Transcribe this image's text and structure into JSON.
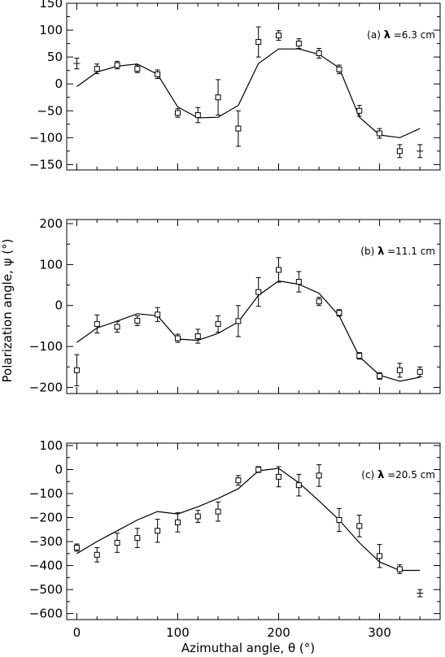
{
  "figure": {
    "xlabel": "Azimuthal angle, θ (°)",
    "ylabel": "Polarization angle, ψ (°)"
  },
  "chart_data": [
    {
      "type": "scatter",
      "panel": "(a)",
      "annotation": {
        "prefix": "(a) ",
        "lambda": "λ",
        "value": " =6.3 cm"
      },
      "xlim": [
        -10,
        360
      ],
      "ylim": [
        -160,
        150
      ],
      "xticks": [
        0,
        100,
        200,
        300
      ],
      "yticks": [
        150,
        100,
        50,
        0,
        -50,
        -100,
        -150
      ],
      "ytick_labels": [
        "150",
        "100",
        "50",
        "0",
        "−50",
        "−100",
        "−150"
      ],
      "observed": {
        "x": [
          0,
          20,
          40,
          60,
          80,
          100,
          120,
          140,
          160,
          180,
          200,
          220,
          240,
          260,
          280,
          300,
          320,
          340
        ],
        "y": [
          38,
          28,
          35,
          28,
          18,
          -54,
          -58,
          -25,
          -83,
          78,
          90,
          75,
          57,
          27,
          -50,
          -92,
          -125,
          -125
        ],
        "err": [
          10,
          9,
          7,
          7,
          8,
          8,
          14,
          33,
          33,
          28,
          9,
          9,
          9,
          8,
          10,
          9,
          12,
          12
        ],
        "marker": [
          "plus",
          "square",
          "square",
          "square",
          "square",
          "square",
          "square",
          "square",
          "square",
          "square",
          "square",
          "square",
          "square",
          "square",
          "square",
          "square",
          "square",
          "plus"
        ]
      },
      "model": {
        "x": [
          0,
          20,
          40,
          60,
          80,
          100,
          120,
          140,
          160,
          180,
          200,
          220,
          240,
          260,
          280,
          300,
          320,
          340
        ],
        "y": [
          -5,
          22,
          33,
          37,
          18,
          -43,
          -63,
          -62,
          -40,
          38,
          65,
          65,
          55,
          30,
          -62,
          -95,
          -100,
          -83
        ]
      }
    },
    {
      "type": "scatter",
      "panel": "(b)",
      "annotation": {
        "prefix": "(b) ",
        "lambda": "λ",
        "value": " =11.1 cm"
      },
      "xlim": [
        -10,
        360
      ],
      "ylim": [
        -215,
        210
      ],
      "xticks": [
        0,
        100,
        200,
        300
      ],
      "yticks": [
        200,
        100,
        0,
        -100,
        -200
      ],
      "ytick_labels": [
        "200",
        "100",
        "0",
        "−100",
        "−200"
      ],
      "observed": {
        "x": [
          0,
          20,
          40,
          60,
          80,
          100,
          120,
          140,
          160,
          180,
          200,
          220,
          240,
          260,
          280,
          300,
          320,
          340
        ],
        "y": [
          -158,
          -45,
          -52,
          -37,
          -22,
          -80,
          -75,
          -45,
          -38,
          33,
          87,
          58,
          10,
          -18,
          -123,
          -172,
          -158,
          -162
        ],
        "err": [
          38,
          22,
          13,
          12,
          17,
          10,
          17,
          20,
          38,
          35,
          30,
          25,
          10,
          8,
          8,
          8,
          17,
          12
        ],
        "marker": [
          "square",
          "square",
          "square",
          "square",
          "square",
          "square",
          "square",
          "square",
          "square",
          "square",
          "square",
          "square",
          "square",
          "square",
          "square",
          "square",
          "square",
          "square"
        ]
      },
      "model": {
        "x": [
          0,
          20,
          40,
          60,
          80,
          100,
          120,
          140,
          160,
          180,
          200,
          220,
          240,
          260,
          280,
          300,
          320,
          340
        ],
        "y": [
          -90,
          -55,
          -38,
          -20,
          -25,
          -82,
          -85,
          -68,
          -40,
          25,
          60,
          52,
          30,
          -25,
          -125,
          -170,
          -185,
          -175
        ]
      }
    },
    {
      "type": "scatter",
      "panel": "(c)",
      "annotation": {
        "prefix": "(c) ",
        "lambda": "λ",
        "value": " =20.5 cm"
      },
      "xlim": [
        -10,
        360
      ],
      "ylim": [
        -625,
        110
      ],
      "xticks": [
        0,
        100,
        200,
        300
      ],
      "xtick_labels": [
        "0",
        "100",
        "200",
        "300"
      ],
      "yticks": [
        100,
        0,
        -100,
        -200,
        -300,
        -400,
        -500,
        -600
      ],
      "ytick_labels": [
        "100",
        "0",
        "−100",
        "−200",
        "−300",
        "−400",
        "−500",
        "−600"
      ],
      "observed": {
        "x": [
          0,
          20,
          40,
          60,
          80,
          100,
          120,
          140,
          160,
          180,
          200,
          220,
          240,
          260,
          280,
          300,
          320,
          340
        ],
        "y": [
          -325,
          -355,
          -305,
          -285,
          -255,
          -220,
          -195,
          -175,
          -45,
          0,
          -30,
          -65,
          -25,
          -210,
          -235,
          -360,
          -415,
          -515
        ],
        "err": [
          15,
          30,
          40,
          40,
          48,
          40,
          25,
          40,
          20,
          12,
          42,
          45,
          45,
          48,
          45,
          48,
          18,
          15
        ],
        "marker": [
          "square",
          "square",
          "square",
          "square",
          "square",
          "square",
          "square",
          "square",
          "square",
          "square",
          "square",
          "square",
          "square",
          "square",
          "square",
          "square",
          "square",
          "plus"
        ]
      },
      "model": {
        "x": [
          0,
          20,
          40,
          60,
          80,
          100,
          120,
          140,
          160,
          180,
          200,
          220,
          240,
          260,
          280,
          300,
          320,
          340
        ],
        "y": [
          -350,
          -300,
          -255,
          -210,
          -175,
          -185,
          -155,
          -120,
          -80,
          -5,
          5,
          -55,
          -130,
          -210,
          -305,
          -385,
          -420,
          -420
        ]
      }
    }
  ]
}
